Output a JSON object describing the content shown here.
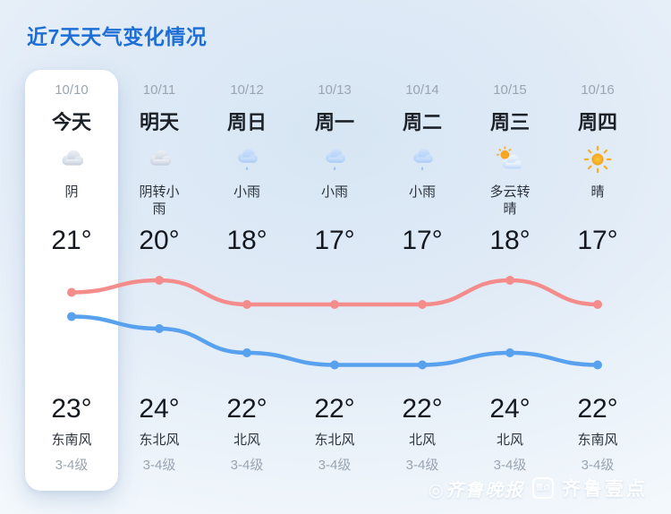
{
  "title": "近7天天气变化情况",
  "colors": {
    "title_blue": "#1e6fd5",
    "line_red": "#f58c8c",
    "line_blue": "#57a1ef",
    "card_bg": "#ffffff"
  },
  "days": [
    {
      "date": "10/10",
      "name": "今天",
      "icon": "overcast",
      "desc": "阴",
      "temp_top": "21°",
      "temp_bottom": "23°",
      "wind": "东南风",
      "level": "3-4级",
      "is_today": true
    },
    {
      "date": "10/11",
      "name": "明天",
      "icon": "overcast",
      "desc": "阴转小雨",
      "temp_top": "20°",
      "temp_bottom": "24°",
      "wind": "东北风",
      "level": "3-4级",
      "is_today": false
    },
    {
      "date": "10/12",
      "name": "周日",
      "icon": "rain",
      "desc": "小雨",
      "temp_top": "18°",
      "temp_bottom": "22°",
      "wind": "北风",
      "level": "3-4级",
      "is_today": false
    },
    {
      "date": "10/13",
      "name": "周一",
      "icon": "rain",
      "desc": "小雨",
      "temp_top": "17°",
      "temp_bottom": "22°",
      "wind": "东北风",
      "level": "3-4级",
      "is_today": false
    },
    {
      "date": "10/14",
      "name": "周二",
      "icon": "rain",
      "desc": "小雨",
      "temp_top": "17°",
      "temp_bottom": "22°",
      "wind": "北风",
      "level": "3-4级",
      "is_today": false
    },
    {
      "date": "10/15",
      "name": "周三",
      "icon": "sun-cloud",
      "desc": "多云转晴",
      "temp_top": "18°",
      "temp_bottom": "24°",
      "wind": "北风",
      "level": "3-4级",
      "is_today": false
    },
    {
      "date": "10/16",
      "name": "周四",
      "icon": "sunny",
      "desc": "晴",
      "temp_top": "17°",
      "temp_bottom": "22°",
      "wind": "东南风",
      "level": "3-4级",
      "is_today": false
    }
  ],
  "chart_data": {
    "type": "line",
    "categories": [
      "10/10",
      "10/11",
      "10/12",
      "10/13",
      "10/14",
      "10/15",
      "10/16"
    ],
    "series": [
      {
        "name": "high-temp-red-line",
        "color": "#f58c8c",
        "values": [
          23,
          24,
          22,
          22,
          22,
          24,
          22
        ]
      },
      {
        "name": "low-temp-blue-line",
        "color": "#57a1ef",
        "values": [
          21,
          20,
          18,
          17,
          17,
          18,
          17
        ]
      }
    ],
    "unit": "°",
    "ylim": [
      15,
      26
    ],
    "grid": false,
    "legend": "none",
    "smoothing": "monotone"
  },
  "watermark": {
    "logo_mark": "◎",
    "paper_name": "齐鲁晚报",
    "badge_text": "壹点",
    "app_name": "齐鲁壹点"
  }
}
